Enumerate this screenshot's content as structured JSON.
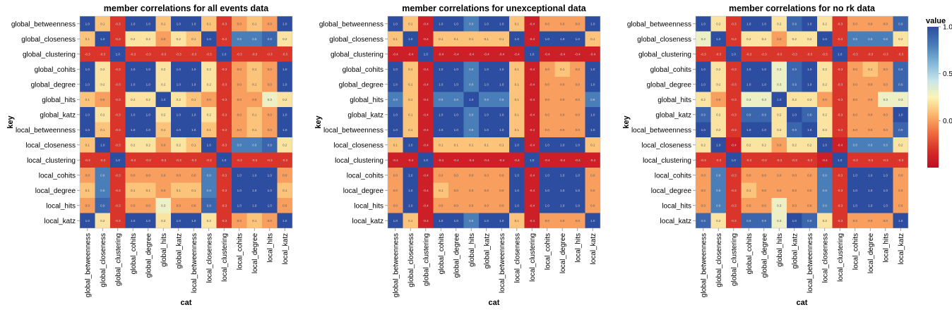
{
  "chart_data": {
    "type": "heatmap",
    "keys": [
      "global_betweenness",
      "global_closeness",
      "global_clustering",
      "global_cohits",
      "global_degree",
      "global_hits",
      "global_katz",
      "local_betweenness",
      "local_closeness",
      "local_clustering",
      "local_cohits",
      "local_degree",
      "local_hits",
      "local_katz"
    ],
    "xlabel": "cat",
    "ylabel": "key",
    "legend": {
      "title": "value",
      "ticks": [
        1.0,
        0.5,
        0.0
      ],
      "tick_labels": [
        "1.0",
        "0.5",
        "0.0"
      ],
      "domain": [
        -0.5,
        1.0
      ],
      "placement": "right"
    },
    "color_scheme": {
      "low": "#c10b26",
      "mid": "#fbf4b5",
      "high": "#2d4da0"
    },
    "panels": [
      {
        "title": "member correlations for all events data",
        "values": [
          [
            1.0,
            0.1,
            -0.3,
            1.0,
            1.0,
            0.1,
            1.0,
            1.0,
            0.1,
            -0.3,
            0.0,
            0.1,
            0.0,
            1.0
          ],
          [
            0.1,
            1.0,
            -0.3,
            0.2,
            0.2,
            0.0,
            0.2,
            0.1,
            1.0,
            -0.3,
            0.8,
            0.8,
            0.9,
            0.2
          ],
          [
            -0.3,
            -0.3,
            1.0,
            -0.3,
            -0.3,
            -0.3,
            -0.3,
            -0.3,
            -0.3,
            1.0,
            -0.3,
            -0.3,
            -0.3,
            -0.3
          ],
          [
            1.0,
            0.2,
            -0.3,
            1.0,
            1.0,
            0.2,
            1.0,
            1.0,
            0.2,
            -0.3,
            0.0,
            0.1,
            0.0,
            1.0
          ],
          [
            1.0,
            0.2,
            -0.3,
            1.0,
            1.0,
            0.2,
            1.0,
            1.0,
            0.2,
            -0.3,
            0.0,
            0.1,
            0.0,
            1.0
          ],
          [
            0.1,
            0.0,
            -0.3,
            0.2,
            0.2,
            1.0,
            0.2,
            0.1,
            0.0,
            -0.3,
            0.0,
            0.0,
            0.3,
            0.2
          ],
          [
            1.0,
            0.2,
            -0.3,
            1.0,
            1.0,
            0.2,
            1.0,
            1.0,
            0.2,
            -0.3,
            0.0,
            0.1,
            0.0,
            1.0
          ],
          [
            1.0,
            0.1,
            -0.3,
            1.0,
            1.0,
            0.1,
            1.0,
            1.0,
            0.1,
            -0.3,
            0.0,
            0.1,
            0.0,
            1.0
          ],
          [
            0.1,
            1.0,
            -0.3,
            0.2,
            0.2,
            0.0,
            0.2,
            0.1,
            1.0,
            -0.3,
            0.8,
            0.8,
            0.9,
            0.2
          ],
          [
            -0.3,
            -0.3,
            1.0,
            -0.3,
            -0.3,
            -0.3,
            -0.3,
            -0.3,
            -0.3,
            1.0,
            -0.3,
            -0.3,
            -0.3,
            -0.3
          ],
          [
            0.0,
            0.8,
            -0.3,
            0.0,
            0.0,
            0.0,
            0.0,
            0.0,
            0.8,
            -0.3,
            1.0,
            1.0,
            1.0,
            0.0
          ],
          [
            0.1,
            0.8,
            -0.3,
            0.1,
            0.1,
            0.0,
            0.1,
            0.1,
            0.8,
            -0.3,
            1.0,
            1.0,
            1.0,
            0.1
          ],
          [
            0.0,
            0.9,
            -0.3,
            0.0,
            0.0,
            0.3,
            0.0,
            0.0,
            0.9,
            -0.3,
            1.0,
            1.0,
            1.0,
            0.0
          ],
          [
            1.0,
            0.2,
            -0.3,
            1.0,
            1.0,
            0.2,
            1.0,
            1.0,
            0.2,
            -0.3,
            0.0,
            0.1,
            0.0,
            1.0
          ]
        ]
      },
      {
        "title": "member correlations for unexceptional data",
        "values": [
          [
            1.0,
            0.1,
            -0.4,
            1.0,
            1.0,
            0.8,
            1.0,
            1.0,
            0.1,
            -0.4,
            0.0,
            0.0,
            0.0,
            1.0
          ],
          [
            0.1,
            1.0,
            -0.4,
            0.1,
            0.1,
            0.1,
            0.1,
            0.1,
            1.0,
            -0.4,
            1.0,
            1.0,
            1.0,
            0.1
          ],
          [
            -0.4,
            -0.4,
            1.0,
            -0.4,
            -0.4,
            -0.4,
            -0.4,
            -0.4,
            -0.4,
            1.0,
            -0.4,
            -0.4,
            -0.4,
            -0.4
          ],
          [
            1.0,
            0.1,
            -0.4,
            1.0,
            1.0,
            0.8,
            1.0,
            1.0,
            0.1,
            -0.4,
            0.0,
            0.1,
            0.0,
            1.0
          ],
          [
            1.0,
            0.1,
            -0.4,
            1.0,
            1.0,
            0.8,
            1.0,
            1.0,
            0.1,
            -0.4,
            0.0,
            0.0,
            0.0,
            1.0
          ],
          [
            0.8,
            0.1,
            -0.4,
            0.8,
            0.8,
            1.0,
            0.8,
            0.8,
            0.1,
            -0.4,
            0.0,
            0.0,
            0.0,
            0.8
          ],
          [
            1.0,
            0.1,
            -0.4,
            1.0,
            1.0,
            0.8,
            1.0,
            1.0,
            0.1,
            -0.4,
            0.0,
            0.0,
            0.0,
            1.0
          ],
          [
            1.0,
            0.1,
            -0.4,
            1.0,
            1.0,
            0.8,
            1.0,
            1.0,
            0.1,
            -0.4,
            0.0,
            0.0,
            0.0,
            1.0
          ],
          [
            0.1,
            1.0,
            -0.4,
            0.1,
            0.1,
            0.1,
            0.1,
            0.1,
            1.0,
            -0.4,
            1.0,
            1.0,
            1.0,
            0.1
          ],
          [
            -0.4,
            -0.4,
            1.0,
            -0.4,
            -0.4,
            -0.4,
            -0.4,
            -0.4,
            -0.4,
            1.0,
            -0.4,
            -0.4,
            -0.4,
            -0.4
          ],
          [
            0.0,
            1.0,
            -0.4,
            0.0,
            0.0,
            0.0,
            0.0,
            0.0,
            1.0,
            -0.4,
            1.0,
            1.0,
            1.0,
            0.0
          ],
          [
            0.0,
            1.0,
            -0.4,
            0.1,
            0.0,
            0.0,
            0.0,
            0.0,
            1.0,
            -0.4,
            1.0,
            1.0,
            1.0,
            0.0
          ],
          [
            0.0,
            1.0,
            -0.4,
            0.0,
            0.0,
            0.0,
            0.0,
            0.0,
            1.0,
            -0.4,
            1.0,
            1.0,
            1.0,
            0.0
          ],
          [
            1.0,
            0.1,
            -0.4,
            1.0,
            1.0,
            0.8,
            1.0,
            1.0,
            0.1,
            -0.4,
            0.0,
            0.0,
            0.0,
            1.0
          ]
        ]
      },
      {
        "title": "member correlations for no rk data",
        "values": [
          [
            1.0,
            0.2,
            -0.3,
            1.0,
            1.0,
            0.2,
            0.9,
            1.0,
            0.2,
            -0.3,
            0.0,
            0.0,
            0.0,
            0.9
          ],
          [
            0.3,
            1.0,
            -0.3,
            0.2,
            0.2,
            0.0,
            0.2,
            0.2,
            1.0,
            -0.3,
            0.8,
            0.8,
            0.8,
            0.2
          ],
          [
            -0.3,
            -0.3,
            1.0,
            -0.3,
            -0.3,
            -0.3,
            -0.3,
            -0.3,
            -0.3,
            1.0,
            -0.3,
            -0.3,
            -0.3,
            -0.3
          ],
          [
            1.0,
            0.2,
            -0.3,
            1.0,
            1.0,
            0.3,
            0.9,
            1.0,
            0.2,
            -0.3,
            0.0,
            0.1,
            0.0,
            0.9
          ],
          [
            1.0,
            0.2,
            -0.3,
            1.0,
            1.0,
            0.3,
            0.9,
            1.0,
            0.2,
            -0.3,
            0.0,
            0.0,
            0.0,
            0.9
          ],
          [
            0.2,
            0.0,
            -0.3,
            0.3,
            0.3,
            1.0,
            0.2,
            0.2,
            0.0,
            -0.3,
            0.0,
            0.0,
            0.3,
            0.3
          ],
          [
            0.9,
            0.2,
            -0.3,
            0.9,
            0.9,
            0.2,
            1.0,
            0.9,
            0.2,
            -0.3,
            0.0,
            0.0,
            0.0,
            1.0
          ],
          [
            1.0,
            0.2,
            -0.3,
            1.0,
            1.0,
            0.2,
            0.9,
            1.0,
            0.2,
            -0.3,
            0.0,
            0.0,
            0.0,
            0.9
          ],
          [
            0.2,
            1.0,
            -0.4,
            0.2,
            0.2,
            0.0,
            0.2,
            0.2,
            1.0,
            -0.4,
            0.8,
            0.8,
            0.8,
            0.2
          ],
          [
            -0.3,
            -0.3,
            1.0,
            -0.3,
            -0.3,
            -0.3,
            -0.3,
            -0.3,
            -0.4,
            1.0,
            -0.3,
            -0.3,
            -0.3,
            -0.3
          ],
          [
            0.0,
            0.8,
            -0.3,
            0.0,
            0.0,
            0.0,
            0.0,
            0.0,
            0.8,
            -0.3,
            1.0,
            1.0,
            1.0,
            0.0
          ],
          [
            0.0,
            0.8,
            -0.3,
            0.1,
            0.0,
            0.0,
            0.0,
            0.0,
            0.8,
            -0.3,
            1.0,
            1.0,
            1.0,
            0.0
          ],
          [
            0.0,
            0.8,
            -0.3,
            0.0,
            0.0,
            0.3,
            0.0,
            0.0,
            0.8,
            -0.3,
            1.0,
            1.0,
            1.0,
            0.0
          ],
          [
            0.9,
            0.2,
            -0.3,
            0.9,
            0.9,
            0.3,
            1.0,
            0.9,
            0.2,
            -0.3,
            0.0,
            0.0,
            0.0,
            1.0
          ]
        ]
      }
    ]
  }
}
